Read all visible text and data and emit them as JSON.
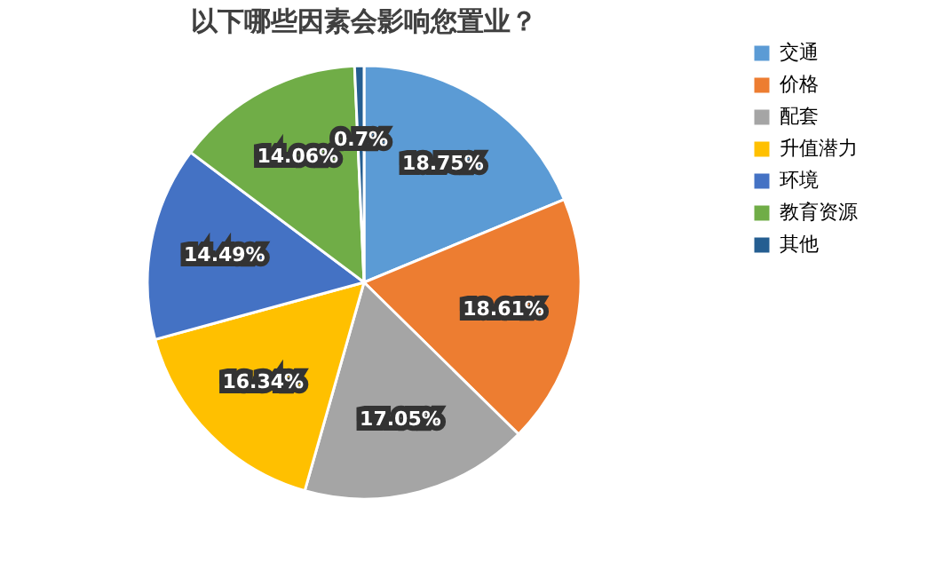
{
  "chart_data": {
    "type": "pie",
    "title": "以下哪些因素会影响您置业？",
    "categories": [
      "交通",
      "价格",
      "配套",
      "升值潜力",
      "环境",
      "教育资源",
      "其他"
    ],
    "values": [
      18.75,
      18.61,
      17.05,
      16.34,
      14.49,
      14.06,
      0.7
    ],
    "colors": [
      "#5b9bd5",
      "#ed7d31",
      "#a5a5a5",
      "#ffc000",
      "#4472c4",
      "#70ad47",
      "#255e91"
    ],
    "value_labels": [
      "18.75%",
      "18.61%",
      "17.05%",
      "16.34%",
      "14.49%",
      "14.06%",
      "0.7%"
    ],
    "legend": "right"
  }
}
